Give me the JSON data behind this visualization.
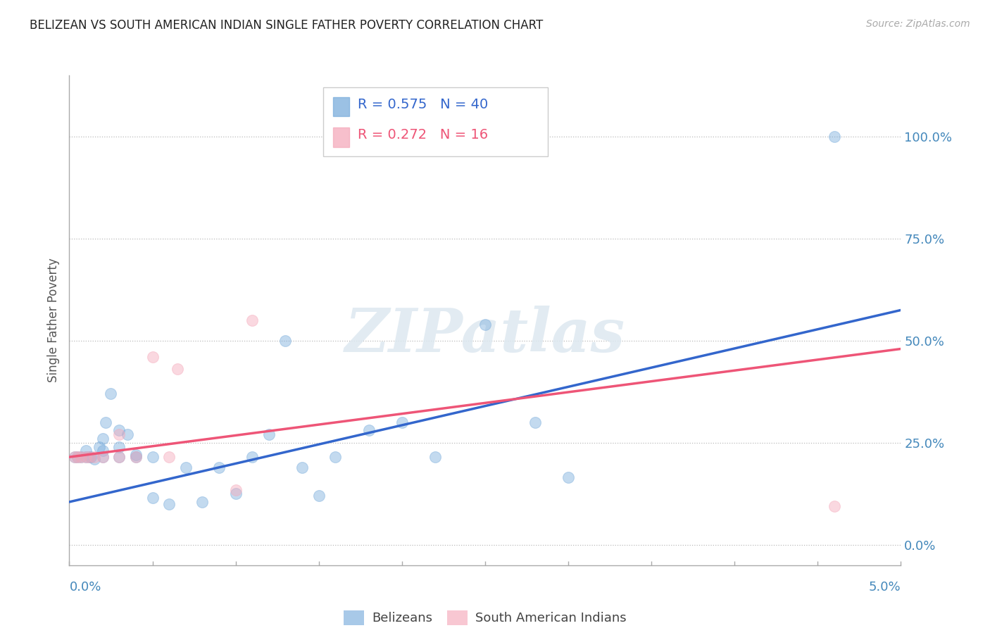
{
  "title": "BELIZEAN VS SOUTH AMERICAN INDIAN SINGLE FATHER POVERTY CORRELATION CHART",
  "source": "Source: ZipAtlas.com",
  "ylabel": "Single Father Poverty",
  "ytick_labels": [
    "0.0%",
    "25.0%",
    "50.0%",
    "75.0%",
    "100.0%"
  ],
  "ytick_values": [
    0.0,
    0.25,
    0.5,
    0.75,
    1.0
  ],
  "xrange": [
    0.0,
    0.05
  ],
  "yrange": [
    -0.05,
    1.15
  ],
  "blue_R": "0.575",
  "blue_N": "40",
  "pink_R": "0.272",
  "pink_N": "16",
  "watermark": "ZIPatlas",
  "blue_scatter_x": [
    0.0003,
    0.0005,
    0.0007,
    0.001,
    0.001,
    0.0012,
    0.0013,
    0.0015,
    0.0018,
    0.002,
    0.002,
    0.002,
    0.0022,
    0.0025,
    0.003,
    0.003,
    0.003,
    0.0035,
    0.004,
    0.004,
    0.005,
    0.005,
    0.006,
    0.007,
    0.008,
    0.009,
    0.01,
    0.011,
    0.012,
    0.013,
    0.014,
    0.015,
    0.016,
    0.018,
    0.02,
    0.022,
    0.025,
    0.028,
    0.03,
    0.046
  ],
  "blue_scatter_y": [
    0.215,
    0.215,
    0.215,
    0.215,
    0.23,
    0.215,
    0.215,
    0.21,
    0.24,
    0.215,
    0.23,
    0.26,
    0.3,
    0.37,
    0.215,
    0.24,
    0.28,
    0.27,
    0.215,
    0.22,
    0.115,
    0.215,
    0.1,
    0.19,
    0.105,
    0.19,
    0.125,
    0.215,
    0.27,
    0.5,
    0.19,
    0.12,
    0.215,
    0.28,
    0.3,
    0.215,
    0.54,
    0.3,
    0.165,
    1.0
  ],
  "pink_scatter_x": [
    0.0003,
    0.0005,
    0.0007,
    0.001,
    0.0012,
    0.0015,
    0.002,
    0.003,
    0.003,
    0.004,
    0.005,
    0.006,
    0.0065,
    0.01,
    0.011,
    0.046
  ],
  "pink_scatter_y": [
    0.215,
    0.215,
    0.215,
    0.215,
    0.215,
    0.215,
    0.215,
    0.215,
    0.27,
    0.215,
    0.46,
    0.215,
    0.43,
    0.135,
    0.55,
    0.095
  ],
  "blue_line_x": [
    0.0,
    0.05
  ],
  "blue_line_y": [
    0.105,
    0.575
  ],
  "pink_line_x": [
    0.0,
    0.05
  ],
  "pink_line_y": [
    0.215,
    0.48
  ],
  "blue_color": "#7aaddc",
  "pink_color": "#f5aabb",
  "blue_line_color": "#3366cc",
  "pink_line_color": "#ee5577",
  "scatter_size": 130,
  "scatter_alpha": 0.45,
  "background_color": "#ffffff",
  "grid_color": "#bbbbbb",
  "title_color": "#222222",
  "axis_label_color": "#555555",
  "tick_color": "#4488bb"
}
